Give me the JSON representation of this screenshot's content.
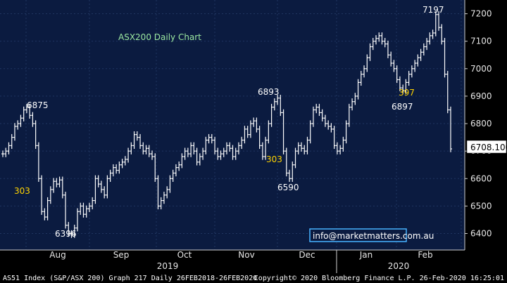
{
  "chart_data": {
    "type": "ohlc",
    "title": "ASX200 Daily Chart",
    "title_color": "#9be7a0",
    "ylim": [
      6340,
      7250
    ],
    "yticks": [
      6400,
      6500,
      6600,
      6700,
      6800,
      6900,
      7000,
      7100,
      7200
    ],
    "months": [
      "Aug",
      "Sep",
      "Oct",
      "Nov",
      "Dec",
      "Jan",
      "Feb"
    ],
    "years": [
      "2019",
      "2020"
    ],
    "last_value": "6708.100",
    "series": [
      {
        "values": [
          6690,
          6700,
          6720,
          6750,
          6790,
          6800,
          6820,
          6850,
          6860,
          6830,
          6800,
          6720,
          6600,
          6480,
          6460,
          6520,
          6560,
          6590,
          6580,
          6595,
          6540,
          6430,
          6400,
          6396,
          6420,
          6480,
          6500,
          6470,
          6490,
          6500,
          6520,
          6600,
          6580,
          6560,
          6540,
          6600,
          6620,
          6640,
          6630,
          6650,
          6660,
          6670,
          6700,
          6720,
          6760,
          6750,
          6720,
          6700,
          6710,
          6690,
          6680,
          6600,
          6500,
          6520,
          6540,
          6560,
          6600,
          6620,
          6640,
          6650,
          6680,
          6700,
          6690,
          6720,
          6700,
          6660,
          6680,
          6700,
          6740,
          6750,
          6740,
          6700,
          6680,
          6690,
          6700,
          6720,
          6710,
          6680,
          6700,
          6720,
          6740,
          6780,
          6760,
          6800,
          6810,
          6780,
          6720,
          6680,
          6740,
          6800,
          6860,
          6880,
          6893,
          6840,
          6700,
          6620,
          6600,
          6650,
          6700,
          6720,
          6710,
          6700,
          6740,
          6800,
          6850,
          6860,
          6840,
          6820,
          6800,
          6790,
          6780,
          6720,
          6700,
          6710,
          6740,
          6800,
          6860,
          6880,
          6900,
          6950,
          6980,
          7000,
          7040,
          7080,
          7100,
          7110,
          7120,
          7100,
          7090,
          7050,
          7020,
          7000,
          6960,
          6930,
          6920,
          6950,
          6980,
          7000,
          7020,
          7040,
          7060,
          7080,
          7100,
          7120,
          7130,
          7197,
          7150,
          7100,
          6980,
          6850,
          6708
        ]
      }
    ],
    "annotations": [
      {
        "text": "6875",
        "color": "#ffffff"
      },
      {
        "text": "303",
        "color": "#ffd400"
      },
      {
        "text": "6396",
        "color": "#ffffff"
      },
      {
        "text": "6893",
        "color": "#ffffff"
      },
      {
        "text": "303",
        "color": "#ffd400"
      },
      {
        "text": "6590",
        "color": "#ffffff"
      },
      {
        "text": "6897",
        "color": "#ffffff"
      },
      {
        "text": "7197",
        "color": "#ffffff"
      },
      {
        "text": "397",
        "color": "#ffd400"
      }
    ]
  },
  "link": "info@marketmatters.com.au",
  "footer": {
    "left": "AS51 Index (S&P/ASX 200) Graph 217  Daily 26FEB2018-26FEB2020",
    "right": "Copyright© 2020 Bloomberg Finance L.P.    26-Feb-2020 16:25:01"
  },
  "colors": {
    "plot_bg": "#0b1b40",
    "grid": "#1f3560",
    "bar": "#ffffff",
    "annotation_highlight": "#ffd400"
  }
}
